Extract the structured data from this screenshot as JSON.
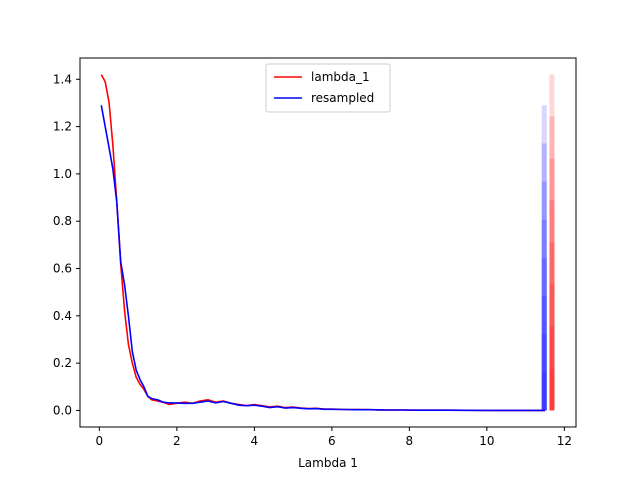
{
  "chart_data": {
    "type": "line",
    "title": "",
    "xlabel": "Lambda 1",
    "ylabel": "",
    "xlim": [
      -0.5,
      12.3
    ],
    "ylim": [
      -0.07,
      1.49
    ],
    "x_ticks": [
      0,
      2,
      4,
      6,
      8,
      10,
      12
    ],
    "x_tick_labels": [
      "0",
      "2",
      "4",
      "6",
      "8",
      "10",
      "12"
    ],
    "y_ticks": [
      0.0,
      0.2,
      0.4,
      0.6,
      0.8,
      1.0,
      1.2,
      1.4
    ],
    "y_tick_labels": [
      "0.0",
      "0.2",
      "0.4",
      "0.6",
      "0.8",
      "1.0",
      "1.2",
      "1.4"
    ],
    "grid": false,
    "legend_position": "top-center",
    "series": [
      {
        "name": "lambda_1",
        "color": "#ff0000",
        "x": [
          0.05,
          0.15,
          0.25,
          0.35,
          0.45,
          0.55,
          0.65,
          0.75,
          0.85,
          0.95,
          1.05,
          1.15,
          1.25,
          1.35,
          1.5,
          1.65,
          1.8,
          2.0,
          2.2,
          2.4,
          2.6,
          2.8,
          3.0,
          3.2,
          3.4,
          3.6,
          3.8,
          4.0,
          4.2,
          4.4,
          4.6,
          4.8,
          5.0,
          5.2,
          5.4,
          5.6,
          5.8,
          6.0,
          6.3,
          6.6,
          7.0,
          7.4,
          7.8,
          8.2,
          9.0,
          10.0,
          11.0,
          11.5
        ],
        "y": [
          1.42,
          1.39,
          1.3,
          1.12,
          0.88,
          0.62,
          0.42,
          0.28,
          0.2,
          0.14,
          0.11,
          0.09,
          0.06,
          0.045,
          0.04,
          0.035,
          0.025,
          0.03,
          0.035,
          0.03,
          0.04,
          0.045,
          0.035,
          0.04,
          0.03,
          0.025,
          0.02,
          0.025,
          0.02,
          0.015,
          0.018,
          0.012,
          0.014,
          0.01,
          0.008,
          0.009,
          0.006,
          0.006,
          0.004,
          0.004,
          0.003,
          0.002,
          0.002,
          0.001,
          0.001,
          0.0,
          0.0,
          0.0
        ]
      },
      {
        "name": "resampled",
        "color": "#0000ff",
        "x": [
          0.05,
          0.15,
          0.25,
          0.35,
          0.45,
          0.55,
          0.65,
          0.75,
          0.85,
          0.95,
          1.05,
          1.15,
          1.25,
          1.35,
          1.5,
          1.65,
          1.8,
          2.0,
          2.2,
          2.4,
          2.6,
          2.8,
          3.0,
          3.2,
          3.4,
          3.6,
          3.8,
          4.0,
          4.2,
          4.4,
          4.6,
          4.8,
          5.0,
          5.2,
          5.4,
          5.6,
          5.8,
          6.0,
          6.3,
          6.6,
          7.0,
          7.4,
          7.8,
          8.2,
          9.0,
          10.0,
          11.0,
          11.5
        ],
        "y": [
          1.29,
          1.2,
          1.11,
          1.02,
          0.88,
          0.63,
          0.53,
          0.4,
          0.25,
          0.17,
          0.13,
          0.1,
          0.06,
          0.05,
          0.045,
          0.035,
          0.032,
          0.032,
          0.03,
          0.03,
          0.035,
          0.04,
          0.032,
          0.038,
          0.03,
          0.022,
          0.02,
          0.022,
          0.018,
          0.012,
          0.016,
          0.01,
          0.012,
          0.009,
          0.007,
          0.008,
          0.005,
          0.005,
          0.004,
          0.003,
          0.003,
          0.002,
          0.002,
          0.001,
          0.001,
          0.0,
          0.0,
          0.0
        ]
      }
    ],
    "side_bars": [
      {
        "name": "resampled",
        "color": "#0000ff",
        "x": 11.48,
        "top": 1.29
      },
      {
        "name": "lambda_1",
        "color": "#ff0000",
        "x": 11.68,
        "top": 1.42
      }
    ]
  }
}
